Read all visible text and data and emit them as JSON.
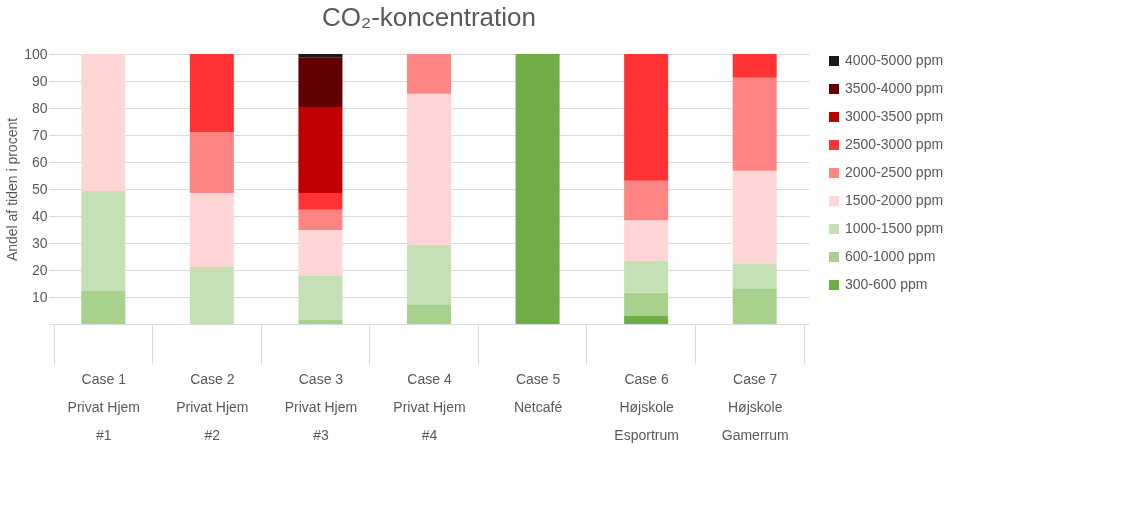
{
  "chart_data": {
    "type": "bar",
    "title": "CO₂-koncentration",
    "ylabel": "Andel af tiden i procent",
    "categories": [
      "Case 1\nPrivat Hjem\n#1",
      "Case 2\nPrivat Hjem\n#2",
      "Case 3\nPrivat Hjem\n#3",
      "Case 4\nPrivat Hjem\n#4",
      "Case 5\nNetcafé",
      "Case 6\nHøjskole\nEsportrum",
      "Case 7\nHøjskole\nGamerrum"
    ],
    "stacked": true,
    "ylim": [
      0,
      100
    ],
    "yticks": [
      10,
      20,
      30,
      40,
      50,
      60,
      70,
      80,
      90,
      100
    ],
    "grid": "y",
    "legend": "right",
    "series": [
      {
        "name": "300-600 ppm",
        "color": "#70ad47",
        "values": [
          null,
          null,
          null,
          null,
          100,
          3.0,
          null
        ]
      },
      {
        "name": "600-1000 ppm",
        "color": "#a9d18e",
        "values": [
          12.2,
          null,
          1.5,
          7.3,
          null,
          8.6,
          13.2
        ]
      },
      {
        "name": "1000-1500 ppm",
        "color": "#c5e0b4",
        "values": [
          37.1,
          21.1,
          16.6,
          22.0,
          null,
          11.7,
          9.1
        ]
      },
      {
        "name": "1500-2000 ppm",
        "color": "#ffd5d5",
        "values": [
          50.7,
          27.4,
          16.7,
          56.0,
          null,
          15.1,
          34.5
        ]
      },
      {
        "name": "2000-2500 ppm",
        "color": "#ff8585",
        "values": [
          null,
          22.6,
          7.5,
          14.7,
          null,
          14.7,
          34.4
        ]
      },
      {
        "name": "2500-3000 ppm",
        "color": "#ff3333",
        "values": [
          null,
          28.9,
          6.2,
          null,
          null,
          46.9,
          8.8
        ]
      },
      {
        "name": "3000-3500 ppm",
        "color": "#c00000",
        "values": [
          null,
          null,
          31.9,
          null,
          null,
          null,
          null
        ]
      },
      {
        "name": "3500-4000 ppm",
        "color": "#600000",
        "values": [
          null,
          null,
          18.4,
          null,
          null,
          null,
          null
        ]
      },
      {
        "name": "4000-5000 ppm",
        "color": "#1a1a1a",
        "values": [
          null,
          null,
          1.2,
          null,
          null,
          null,
          null
        ]
      }
    ]
  }
}
